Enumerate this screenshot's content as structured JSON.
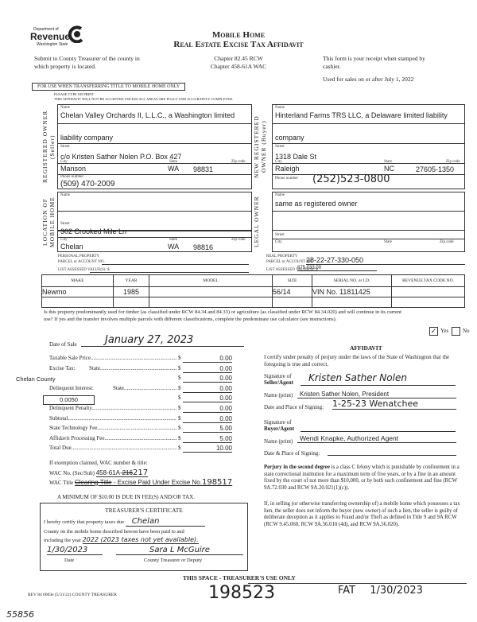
{
  "header": {
    "logo": {
      "dept": "Department of",
      "name": "Revenue",
      "state": "Washington State"
    },
    "title1": "Mobile Home",
    "title2": "Real Estate Excise Tax Affidavit",
    "chapter1": "Chapter 82.45 RCW",
    "chapter2": "Chapter 458-61A WAC",
    "submit": "Submit to County Treasurer of the county in which property is located.",
    "receipt": "This form is your receipt when stamped by cashier.",
    "used_for": "Used for sales on or after July 1, 2022",
    "for_use": "FOR USE WHEN TRANSFERRING TITLE TO MOBILE HOME ONLY",
    "type_print": "PLEASE TYPE OR PRINT",
    "warning": "THIS AFFIDAVIT WILL NOT BE ACCEPTED UNLESS ALL AREAS ARE FULLY AND ACCURATELY COMPLETED."
  },
  "labels": {
    "name": "Name",
    "street": "Street",
    "city": "City",
    "state": "State",
    "zip": "Zip code",
    "phone": "Phone number"
  },
  "seller": {
    "side_label": "REGISTERED OWNER (Seller)",
    "name1": "Chelan Valley Orchards II, L.L.C., a Washington limited",
    "name2": "liability company",
    "street": "c/o Kristen Sather Nolen P.O. Box 427",
    "city": "Manson",
    "state": "WA",
    "zip": "98831",
    "phone": "(509) 470-2009"
  },
  "buyer": {
    "side_label": "NEW REGISTERED OWNER (Buyer)",
    "name1": "Hinterland Farms TRS LLC, a Delaware limited liability",
    "name2": "company",
    "street": "1318 Dale St",
    "city": "Raleigh",
    "state": "NC",
    "zip": "27605-1350",
    "phone": "(252)523-0800"
  },
  "location": {
    "side_label": "LOCATION OF MOBILE HOME",
    "name": "",
    "street": "302 Crooked Mile Ln",
    "city": "Chelan",
    "state": "WA",
    "zip": "98816"
  },
  "legal_owner": {
    "side_label": "LEGAL OWNER",
    "name": "same as registered owner",
    "street": "",
    "city": "",
    "state": "",
    "zip": ""
  },
  "personal_property": {
    "label1": "PERSONAL PROPERTY",
    "label2": "PARCEL or ACCOUNT NO.",
    "value_label": "LIST ASSESSED VALUE(S): $",
    "parcel": "",
    "value": ""
  },
  "real_property": {
    "label1": "REAL PROPERTY",
    "label2": "PARCEL or ACCOUNT NO.",
    "value_label": "LIST ASSESSED VALUE(S): $",
    "parcel": "28-22-27-330-050",
    "value": "875,033.00"
  },
  "home_table": {
    "headers": [
      "MAKE",
      "YEAR",
      "MODEL",
      "SIZE",
      "SERIAL NO. or I.D.",
      "REVENUE TAX CODE NO."
    ],
    "rows": [
      [
        "Newmo",
        "1985",
        "",
        "56/14",
        "VIN No. 11811425",
        ""
      ],
      [
        "",
        "",
        "",
        "",
        "",
        ""
      ]
    ]
  },
  "timber": {
    "question": "Is this property predominantly used for timber (as classified under RCW 84.34 and 84.33) or agriculture (as classified under RCW 84.34.020) and will continue in its current use? If yes and the transfer involves multiple parcels with different classifications, complete the predominate use calculator (see instructions).",
    "yes": "Yes",
    "no": "No",
    "yes_checked": true
  },
  "sale": {
    "date_label": "Date of Sale",
    "date": "January 27, 2023",
    "county": "Chelan County",
    "rate": "0.0050",
    "fees": [
      {
        "label": "Taxable Sale Price",
        "sub": "",
        "amount": "0.00"
      },
      {
        "label": "Excise Tax:",
        "sub": "State",
        "amount": "0.00"
      },
      {
        "label": "",
        "sub": "Local",
        "amount": "0.00"
      },
      {
        "label": "Delinquent Interest:",
        "sub": "State",
        "amount": "0.00"
      },
      {
        "label": "",
        "sub": "Local",
        "amount": "0.00"
      },
      {
        "label": "Delinquent Penalty",
        "sub": "",
        "amount": "0.00"
      },
      {
        "label": "Subtotal",
        "sub": "",
        "amount": "0.00"
      },
      {
        "label": "State Technology Fee",
        "sub": "",
        "amount": "5.00"
      },
      {
        "label": "Affidavit Processing Fee",
        "sub": "",
        "amount": "5.00"
      },
      {
        "label": "Total Due",
        "sub": "",
        "amount": "10.00"
      }
    ],
    "exemption_label": "If exemption claimed, WAC number & title:",
    "wac_no_label": "WAC No. (Sec/Sub)",
    "wac_no": "458-61A-",
    "wac_no_struck": "216",
    "wac_no_hand": "217",
    "wac_title_label": "WAC Title",
    "wac_title_struck": "Clearing Title",
    "wac_title": "Excise Paid Under Excise No.",
    "wac_title_hand": "198517",
    "minimum": "A MINIMUM OF $10.00 IS DUE IN FEE(S) AND/OR TAX."
  },
  "affidavit": {
    "title": "AFFIDAVIT",
    "certify": "I certify under penalty of perjury under the laws of the State of Washington that the foregoing is true and correct.",
    "sig_seller_label1": "Signature of",
    "sig_seller_label2": "Seller/Agent",
    "seller_signature": "Kristen Sather Nolen",
    "name_print_label": "Name (print)",
    "seller_name": "Kristen Sather Nolen, President",
    "date_place_label": "Date and Place of Signing:",
    "seller_date_place": "1-25-23 Wenatchee",
    "sig_buyer_label1": "Signature of",
    "sig_buyer_label2": "Buyer/Agent",
    "buyer_signature": "",
    "buyer_name": "Wendi Knapke, Authorized Agent",
    "buyer_date_place_label": "Date & Place of Signing:",
    "buyer_date_place": "",
    "perjury_bold": "Perjury in the second degree",
    "perjury": " is a class C felony which is punishable by confinement in a state correctional institution for a maximum term of five years, or by a fine in an amount fixed by the court of not more than $10,000, or by both such confinement and fine (RCW 9A.72.030 and RCW 9A.20.021(1)(c)).",
    "lien": "If, in selling (or otherwise transferring ownership of) a mobile home which possesses a tax lien, the seller does not inform the buyer (new owner) of such a lien, the seller is guilty of deliberate deception as it applies to Fraud and/or Theft as defined in Title 9 and 9A RCW (RCW 9.45.060, RCW 9A.56.010 (4d), and RCW 9A.56.020)."
  },
  "treasurer": {
    "title": "TREASURER'S CERTIFICATE",
    "line1": "I hereby certify that property taxes due",
    "county": "Chelan",
    "line2": "County on the mobile home described hereon have been paid to and",
    "line3": "including the year",
    "year": "2022 (2023 taxes not yet available).",
    "date": "1/30/2023",
    "signature": "Sara L McGuire",
    "date_label": "Date",
    "sig_label": "County Treasurer or Deputy"
  },
  "footer": {
    "form_no": "REV 84 0003e (5/31/22) COUNTY TREASURER",
    "use_only": "THIS SPACE - TREASURER'S USE ONLY",
    "receipt_no": "198523",
    "stamp": "FAT 1/30/2023",
    "doc_no": "55856"
  }
}
